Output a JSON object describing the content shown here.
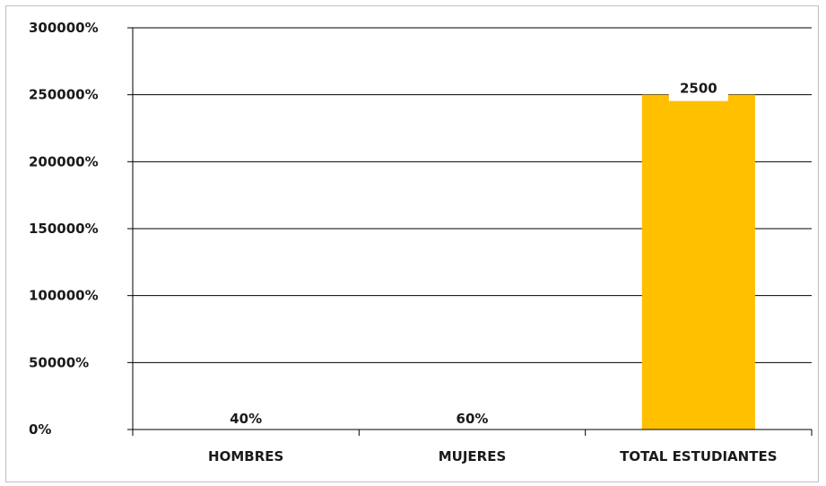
{
  "chart_data": {
    "type": "bar",
    "title": "",
    "xlabel": "",
    "ylabel": "",
    "categories": [
      "HOMBRES",
      "MUJERES",
      "TOTAL ESTUDIANTES"
    ],
    "values": [
      0.4,
      0.6,
      2500
    ],
    "data_labels": [
      "40%",
      "60%",
      "2500"
    ],
    "ylim": [
      0,
      3000
    ],
    "y_ticks": [
      0,
      500,
      1000,
      1500,
      2000,
      2500,
      3000
    ],
    "y_tick_labels": [
      "0%",
      "50000%",
      "100000%",
      "150000%",
      "200000%",
      "250000%",
      "300000%"
    ],
    "grid": true,
    "legend": "none",
    "colors": {
      "bar": "#FFC000",
      "gridline": "#000000",
      "axis": "#000000",
      "text": "#1a1a1a"
    }
  }
}
